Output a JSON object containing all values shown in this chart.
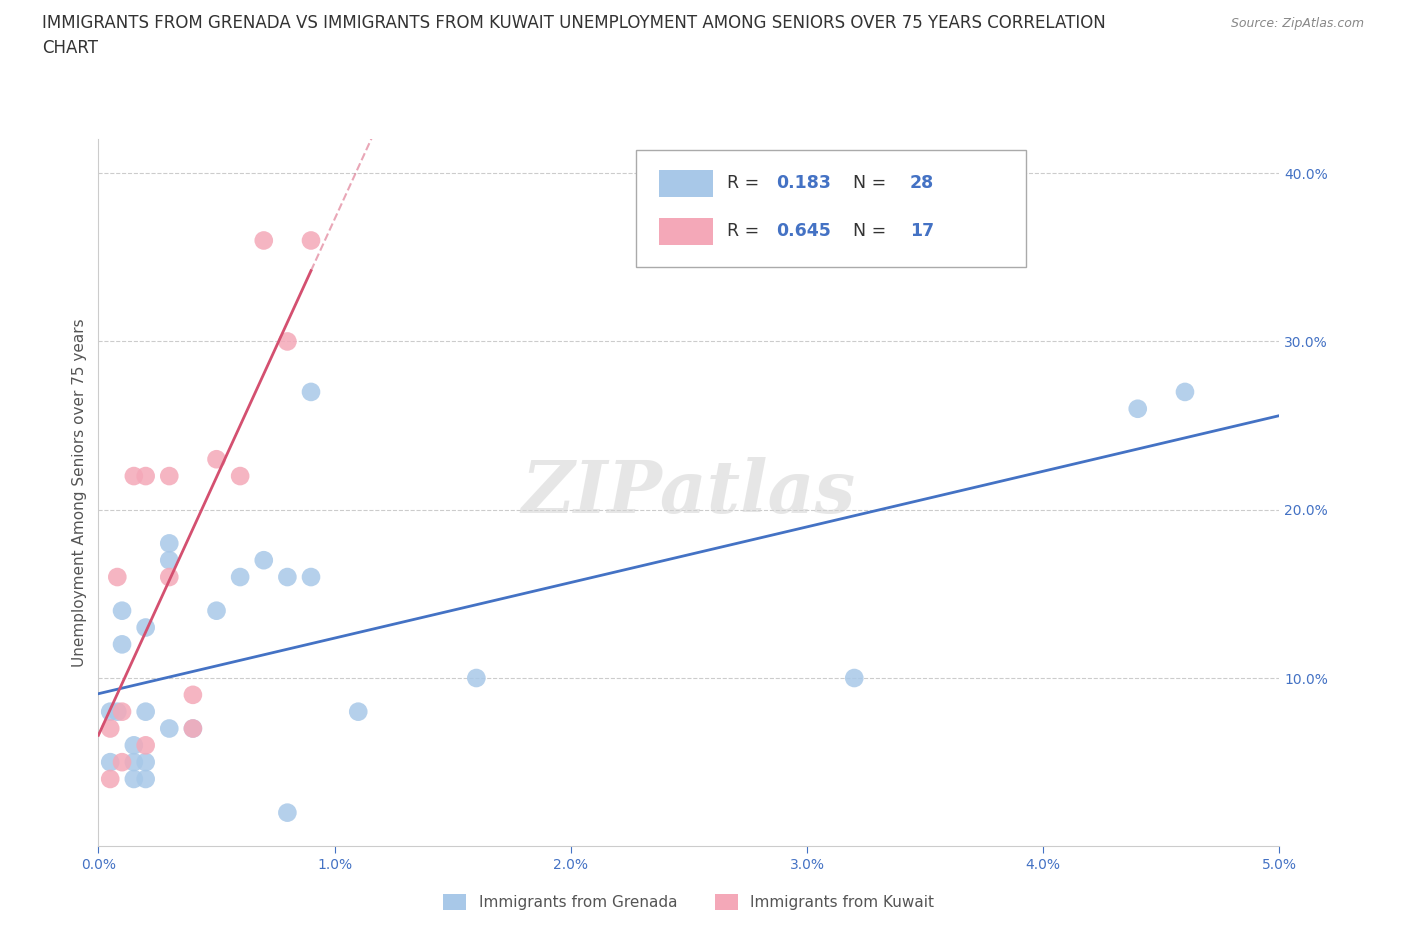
{
  "title_line1": "IMMIGRANTS FROM GRENADA VS IMMIGRANTS FROM KUWAIT UNEMPLOYMENT AMONG SENIORS OVER 75 YEARS CORRELATION",
  "title_line2": "CHART",
  "source_text": "Source: ZipAtlas.com",
  "ylabel": "Unemployment Among Seniors over 75 years",
  "xlim": [
    0.0,
    0.05
  ],
  "ylim": [
    0.0,
    0.42
  ],
  "xticks": [
    0.0,
    0.01,
    0.02,
    0.03,
    0.04,
    0.05
  ],
  "xtick_labels": [
    "0.0%",
    "1.0%",
    "2.0%",
    "3.0%",
    "4.0%",
    "5.0%"
  ],
  "yticks": [
    0.1,
    0.2,
    0.3,
    0.4
  ],
  "ytick_labels": [
    "10.0%",
    "20.0%",
    "30.0%",
    "40.0%"
  ],
  "grenada_x": [
    0.0005,
    0.0005,
    0.0008,
    0.001,
    0.001,
    0.0015,
    0.0015,
    0.0015,
    0.002,
    0.002,
    0.002,
    0.002,
    0.003,
    0.003,
    0.003,
    0.004,
    0.005,
    0.006,
    0.007,
    0.008,
    0.008,
    0.009,
    0.009,
    0.011,
    0.016,
    0.032,
    0.044,
    0.046
  ],
  "grenada_y": [
    0.05,
    0.08,
    0.08,
    0.12,
    0.14,
    0.04,
    0.05,
    0.06,
    0.13,
    0.04,
    0.05,
    0.08,
    0.18,
    0.07,
    0.17,
    0.07,
    0.14,
    0.16,
    0.17,
    0.02,
    0.16,
    0.16,
    0.27,
    0.08,
    0.1,
    0.1,
    0.26,
    0.27
  ],
  "kuwait_x": [
    0.0005,
    0.0005,
    0.0008,
    0.001,
    0.001,
    0.0015,
    0.002,
    0.002,
    0.003,
    0.003,
    0.004,
    0.004,
    0.005,
    0.006,
    0.007,
    0.008,
    0.009
  ],
  "kuwait_y": [
    0.04,
    0.07,
    0.16,
    0.05,
    0.08,
    0.22,
    0.06,
    0.22,
    0.16,
    0.22,
    0.07,
    0.09,
    0.23,
    0.22,
    0.36,
    0.3,
    0.36
  ],
  "grenada_color": "#a8c8e8",
  "kuwait_color": "#f4a8b8",
  "grenada_line_color": "#4472c4",
  "kuwait_line_color": "#d45070",
  "R_grenada": 0.183,
  "N_grenada": 28,
  "R_kuwait": 0.645,
  "N_kuwait": 17,
  "legend_label_grenada": "Immigrants from Grenada",
  "legend_label_kuwait": "Immigrants from Kuwait",
  "watermark": "ZIPatlas",
  "background_color": "#ffffff"
}
